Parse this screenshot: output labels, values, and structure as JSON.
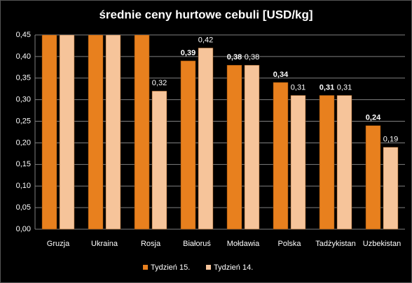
{
  "chart_data": {
    "type": "bar",
    "title": "średnie ceny hurtowe cebuli [USD/kg]",
    "categories": [
      "Gruzja",
      "Ukraina",
      "Rosja",
      "Białoruś",
      "Mołdawia",
      "Polska",
      "Tadżykistan",
      "Uzbekistan"
    ],
    "series": [
      {
        "name": "Tydzień 15.",
        "color": "#e8801e",
        "values": [
          0.45,
          0.45,
          0.45,
          0.39,
          0.38,
          0.34,
          0.31,
          0.24
        ],
        "value_labels": [
          null,
          null,
          null,
          "0,39",
          "0,38",
          "0,34",
          "0,31",
          "0,24"
        ]
      },
      {
        "name": "Tydzień 14.",
        "color": "#f6c49a",
        "values": [
          0.45,
          0.45,
          0.32,
          0.42,
          0.38,
          0.31,
          0.31,
          0.19
        ],
        "value_labels": [
          null,
          null,
          "0,32",
          "0,42",
          "0,38",
          "0,31",
          "0,31",
          "0,19"
        ]
      }
    ],
    "ylim": [
      0,
      0.45
    ],
    "yticks": [
      {
        "value": 0,
        "label": "0,00"
      },
      {
        "value": 0.05,
        "label": "0,05"
      },
      {
        "value": 0.1,
        "label": "0,10"
      },
      {
        "value": 0.15,
        "label": "0,15"
      },
      {
        "value": 0.2,
        "label": "0,20"
      },
      {
        "value": 0.25,
        "label": "0,25"
      },
      {
        "value": 0.3,
        "label": "0,30"
      },
      {
        "value": 0.35,
        "label": "0,35"
      },
      {
        "value": 0.4,
        "label": "0,40"
      },
      {
        "value": 0.45,
        "label": "0,45"
      }
    ],
    "grid": true,
    "legend": "bottom"
  }
}
